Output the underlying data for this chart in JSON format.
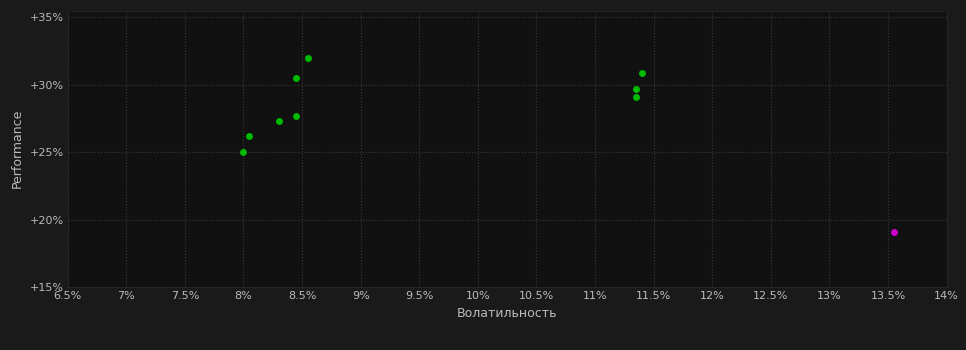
{
  "background_color": "#1a1a1a",
  "plot_bg_color": "#111111",
  "grid_color": "#3a3a3a",
  "text_color": "#bbbbbb",
  "xlabel": "Волатильность",
  "ylabel": "Performance",
  "xlim": [
    0.065,
    0.14
  ],
  "ylim": [
    0.15,
    0.355
  ],
  "xticks": [
    0.065,
    0.07,
    0.075,
    0.08,
    0.085,
    0.09,
    0.095,
    0.1,
    0.105,
    0.11,
    0.115,
    0.12,
    0.125,
    0.13,
    0.135,
    0.14
  ],
  "yticks": [
    0.15,
    0.2,
    0.25,
    0.3,
    0.35
  ],
  "green_points": [
    [
      0.0855,
      0.32
    ],
    [
      0.0845,
      0.305
    ],
    [
      0.0845,
      0.277
    ],
    [
      0.083,
      0.273
    ],
    [
      0.0805,
      0.262
    ],
    [
      0.08,
      0.25
    ],
    [
      0.114,
      0.309
    ],
    [
      0.1135,
      0.297
    ],
    [
      0.1135,
      0.291
    ]
  ],
  "magenta_points": [
    [
      0.1355,
      0.191
    ]
  ],
  "green_color": "#00bb00",
  "magenta_color": "#cc00cc",
  "marker_size": 5
}
